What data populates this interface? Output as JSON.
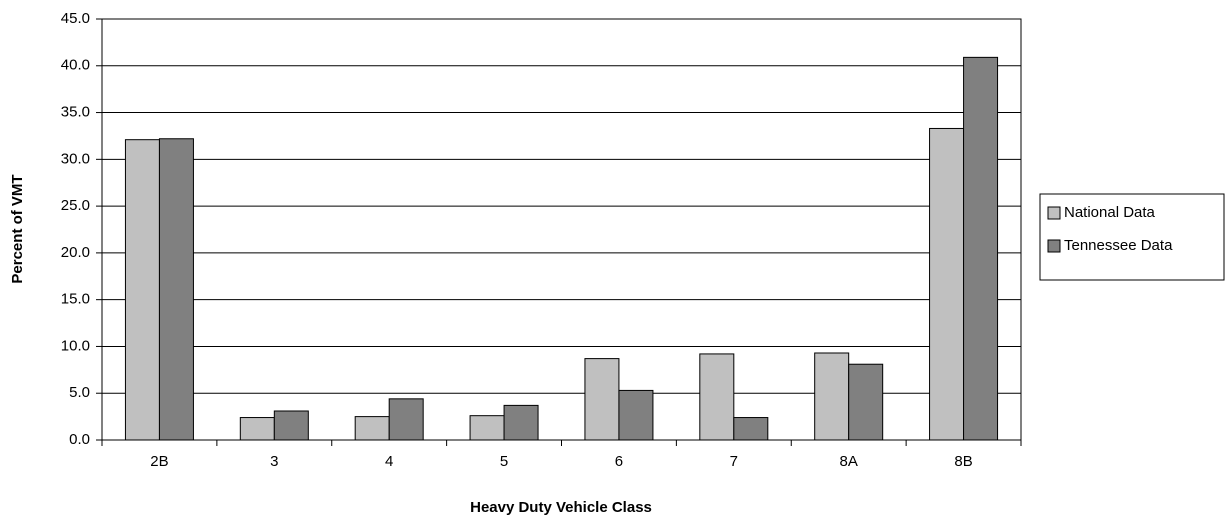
{
  "chart_data": {
    "type": "bar",
    "x_label": "Heavy Duty Vehicle Class",
    "y_label": "Percent of VMT",
    "categories": [
      "2B",
      "3",
      "4",
      "5",
      "6",
      "7",
      "8A",
      "8B"
    ],
    "series": [
      {
        "name": "National Data",
        "color": "#c0c0c0",
        "values": [
          32.1,
          2.4,
          2.5,
          2.6,
          8.7,
          9.2,
          9.3,
          33.3
        ]
      },
      {
        "name": "Tennessee Data",
        "color": "#808080",
        "values": [
          32.2,
          3.1,
          4.4,
          3.7,
          5.3,
          2.4,
          8.1,
          40.9
        ]
      }
    ],
    "ylim": [
      0,
      45
    ],
    "yticks": [
      {
        "value": 0,
        "label": "0.0"
      },
      {
        "value": 5,
        "label": "5.0"
      },
      {
        "value": 10,
        "label": "10.0"
      },
      {
        "value": 15,
        "label": "15.0"
      },
      {
        "value": 20,
        "label": "20.0"
      },
      {
        "value": 25,
        "label": "25.0"
      },
      {
        "value": 30,
        "label": "30.0"
      },
      {
        "value": 35,
        "label": "35.0"
      },
      {
        "value": 40,
        "label": "40.0"
      },
      {
        "value": 45,
        "label": "45.0"
      }
    ],
    "grid": true,
    "legend": "right"
  }
}
